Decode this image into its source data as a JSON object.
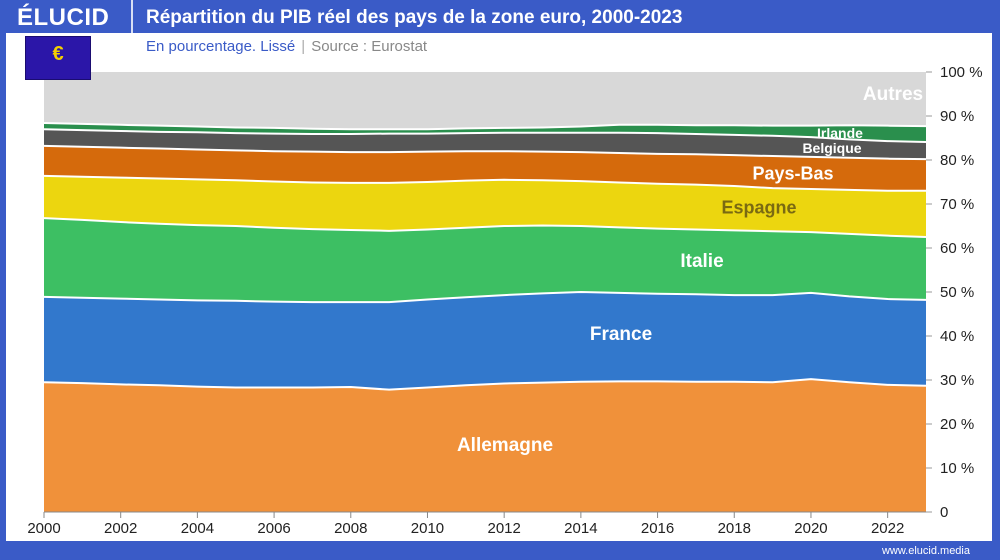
{
  "header": {
    "brand": "ÉLUCID",
    "title": "Répartition du PIB réel des pays de la zone euro, 2000-2023",
    "subtitle": "En pourcentage. Lissé",
    "separator": "|",
    "source": "Source : Eurostat",
    "flag_icon": "eu-flag-euro-icon"
  },
  "footer": {
    "url": "www.elucid.media"
  },
  "chart_data": {
    "type": "area",
    "stacked": true,
    "x": [
      2000,
      2001,
      2002,
      2003,
      2004,
      2005,
      2006,
      2007,
      2008,
      2009,
      2010,
      2011,
      2012,
      2013,
      2014,
      2015,
      2016,
      2017,
      2018,
      2019,
      2020,
      2021,
      2022,
      2023
    ],
    "xticks": [
      "2000",
      "2002",
      "2004",
      "2006",
      "2008",
      "2010",
      "2012",
      "2014",
      "2016",
      "2018",
      "2020",
      "2022"
    ],
    "yticks": [
      "0",
      "10 %",
      "20 %",
      "30 %",
      "40 %",
      "50 %",
      "60 %",
      "70 %",
      "80 %",
      "90 %",
      "100 %"
    ],
    "ylim": [
      0,
      100
    ],
    "series": [
      {
        "name": "Allemagne",
        "color": "#f0913a",
        "label_color": "#ffffff",
        "values": [
          29.5,
          29.3,
          29.0,
          28.8,
          28.5,
          28.3,
          28.3,
          28.3,
          28.4,
          27.8,
          28.3,
          28.8,
          29.2,
          29.4,
          29.6,
          29.7,
          29.7,
          29.6,
          29.6,
          29.5,
          30.2,
          29.5,
          28.9,
          28.7
        ]
      },
      {
        "name": "France",
        "color": "#3278cc",
        "label_color": "#ffffff",
        "values": [
          19.4,
          19.4,
          19.5,
          19.5,
          19.6,
          19.7,
          19.5,
          19.4,
          19.3,
          19.9,
          20.0,
          20.0,
          20.1,
          20.3,
          20.4,
          20.1,
          19.9,
          19.9,
          19.7,
          19.8,
          19.6,
          19.5,
          19.5,
          19.5
        ]
      },
      {
        "name": "Italie",
        "color": "#3dbf63",
        "label_color": "#ffffff",
        "values": [
          17.9,
          17.7,
          17.4,
          17.2,
          17.1,
          17.0,
          16.8,
          16.6,
          16.4,
          16.2,
          15.9,
          15.8,
          15.7,
          15.4,
          15.0,
          14.9,
          14.8,
          14.7,
          14.7,
          14.5,
          13.8,
          14.2,
          14.4,
          14.3
        ]
      },
      {
        "name": "Espagne",
        "color": "#ecd60f",
        "label_color": "#7a6a12",
        "values": [
          9.6,
          9.8,
          10.1,
          10.3,
          10.4,
          10.4,
          10.5,
          10.6,
          10.7,
          10.9,
          10.8,
          10.7,
          10.5,
          10.3,
          10.2,
          10.2,
          10.2,
          10.2,
          10.1,
          9.8,
          9.8,
          10.0,
          10.2,
          10.5
        ]
      },
      {
        "name": "Pays-Bas",
        "color": "#d56a0c",
        "label_color": "#ffffff",
        "values": [
          6.8,
          6.8,
          6.8,
          6.8,
          6.8,
          6.8,
          6.9,
          7.0,
          7.0,
          7.0,
          6.9,
          6.7,
          6.5,
          6.5,
          6.6,
          6.7,
          6.8,
          6.9,
          7.0,
          7.3,
          7.3,
          7.3,
          7.3,
          7.2
        ]
      },
      {
        "name": "Belgique",
        "color": "#555555",
        "label_color": "#ffffff",
        "values": [
          3.8,
          3.8,
          3.8,
          3.8,
          3.9,
          3.9,
          4.0,
          4.0,
          4.1,
          4.2,
          4.1,
          4.1,
          4.2,
          4.3,
          4.4,
          4.6,
          4.7,
          4.6,
          4.6,
          4.6,
          4.5,
          4.2,
          4.0,
          3.9
        ]
      },
      {
        "name": "Irlande",
        "color": "#2a8f4d",
        "label_color": "#ffffff",
        "values": [
          1.4,
          1.4,
          1.4,
          1.4,
          1.3,
          1.3,
          1.3,
          1.2,
          1.1,
          1.0,
          1.0,
          1.1,
          1.1,
          1.2,
          1.4,
          1.8,
          1.9,
          2.0,
          2.2,
          2.3,
          2.6,
          3.2,
          3.5,
          3.6
        ]
      },
      {
        "name": "Autres",
        "color": "#d8d8d8",
        "label_color": "#ffffff",
        "values": [
          11.6,
          11.8,
          12.0,
          12.2,
          12.4,
          12.6,
          12.7,
          12.9,
          13.0,
          13.0,
          13.0,
          12.8,
          12.7,
          12.6,
          12.4,
          12.0,
          12.0,
          12.1,
          12.1,
          12.2,
          12.2,
          12.1,
          12.2,
          12.3
        ]
      }
    ]
  }
}
